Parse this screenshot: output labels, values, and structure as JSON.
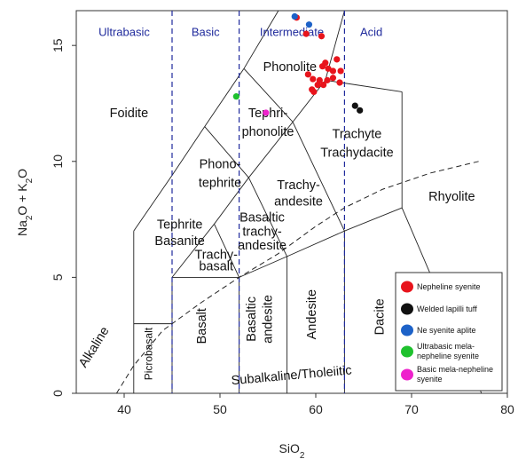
{
  "chart_data": {
    "type": "scatter",
    "title": "",
    "xlabel_main": "SiO",
    "xlabel_sub": "2",
    "ylabel_parts": [
      "Na",
      "2",
      "O + K",
      "2",
      "O"
    ],
    "xlim": [
      35,
      80
    ],
    "ylim": [
      0,
      16.5
    ],
    "xticks": [
      40,
      50,
      60,
      70,
      80
    ],
    "yticks": [
      0,
      5,
      10,
      15
    ],
    "classes": [
      {
        "name": "Ultrabasic",
        "x": 40,
        "y": 15.4
      },
      {
        "name": "Basic",
        "x": 48.5,
        "y": 15.4
      },
      {
        "name": "Intermediate",
        "x": 57.5,
        "y": 15.4
      },
      {
        "name": "Acid",
        "x": 65.8,
        "y": 15.4
      }
    ],
    "fields": [
      {
        "name": "Phonolite",
        "x": 57.3,
        "y": 13.9
      },
      {
        "name": "Foidite",
        "x": 40.5,
        "y": 11.9
      },
      {
        "name": "Tephri-",
        "x": 55.0,
        "y": 11.9
      },
      {
        "name": "phonolite",
        "x": 55.0,
        "y": 11.1
      },
      {
        "name": "Trachyte",
        "x": 64.3,
        "y": 11.0
      },
      {
        "name": "Trachydacite",
        "x": 64.3,
        "y": 10.2
      },
      {
        "name": "Phono-",
        "x": 50.0,
        "y": 9.7
      },
      {
        "name": "tephrite",
        "x": 50.0,
        "y": 8.9
      },
      {
        "name": "Trachy-",
        "x": 58.2,
        "y": 8.8
      },
      {
        "name": "andesite",
        "x": 58.2,
        "y": 8.1
      },
      {
        "name": "Rhyolite",
        "x": 74.2,
        "y": 8.3
      },
      {
        "name": "Tephrite",
        "x": 45.8,
        "y": 7.1
      },
      {
        "name": "Basanite",
        "x": 45.8,
        "y": 6.4
      },
      {
        "name": "Basaltic",
        "x": 54.4,
        "y": 7.4
      },
      {
        "name": "trachy-",
        "x": 54.4,
        "y": 6.8
      },
      {
        "name": "andesite",
        "x": 54.4,
        "y": 6.2
      },
      {
        "name": "Trachy-",
        "x": 49.6,
        "y": 5.8
      },
      {
        "name": "basalt",
        "x": 49.6,
        "y": 5.3
      }
    ],
    "vertical_labels": [
      {
        "name": "Picrobasalt",
        "x": 42.9,
        "y": 1.7
      },
      {
        "name": "Basalt",
        "x": 48.5,
        "y": 2.9
      },
      {
        "name": "Basaltic",
        "x": 53.7,
        "y": 3.2
      },
      {
        "name": "andesite",
        "x": 55.4,
        "y": 3.2
      },
      {
        "name": "Andesite",
        "x": 60.0,
        "y": 3.4
      },
      {
        "name": "Dacite",
        "x": 67.1,
        "y": 3.3
      },
      {
        "name": "Alkaline",
        "x": 37.2,
        "y": 1.9
      }
    ],
    "subalkaline_label": {
      "name": "Subalkaline/Tholeiitic",
      "x": 57.5,
      "y": 0.6
    },
    "series": [
      {
        "name": "Nepheline syenite",
        "color": "#e8141c",
        "points": [
          [
            58.0,
            16.2
          ],
          [
            59.0,
            15.5
          ],
          [
            60.6,
            15.4
          ],
          [
            61.0,
            14.25
          ],
          [
            60.7,
            14.1
          ],
          [
            61.3,
            14.0
          ],
          [
            61.8,
            13.9
          ],
          [
            62.6,
            13.9
          ],
          [
            62.2,
            14.4
          ],
          [
            61.8,
            13.6
          ],
          [
            62.5,
            13.4
          ],
          [
            61.2,
            13.5
          ],
          [
            59.2,
            13.75
          ],
          [
            59.7,
            13.55
          ],
          [
            60.2,
            13.3
          ],
          [
            60.4,
            13.5
          ],
          [
            60.8,
            13.3
          ],
          [
            59.6,
            13.1
          ],
          [
            59.8,
            13.0
          ]
        ]
      },
      {
        "name": "Welded lapilli tuff",
        "color": "#111111",
        "points": [
          [
            64.1,
            12.4
          ],
          [
            64.6,
            12.2
          ]
        ]
      },
      {
        "name": "Ne syenite aplite",
        "color": "#1d62c8",
        "points": [
          [
            57.8,
            16.25
          ],
          [
            59.3,
            15.9
          ]
        ]
      },
      {
        "name": "Ultrabasic mela-nepheline syenite",
        "color": "#1fc12e",
        "points": [
          [
            51.7,
            12.8
          ]
        ]
      },
      {
        "name": "Basic mela-nepheline syenite",
        "color": "#ee22cc",
        "points": [
          [
            54.8,
            12.1
          ]
        ]
      }
    ],
    "legend": [
      {
        "lines": [
          "Nepheline syenite"
        ],
        "color": "#e8141c"
      },
      {
        "lines": [
          "Welded lapilli tuff"
        ],
        "color": "#111111"
      },
      {
        "lines": [
          "Ne syenite aplite"
        ],
        "color": "#1d62c8"
      },
      {
        "lines": [
          "Ultrabasic mela-",
          "nepheline syenite"
        ],
        "color": "#1fc12e"
      },
      {
        "lines": [
          "Basic mela-nepheline",
          "syenite"
        ],
        "color": "#ee22cc"
      }
    ],
    "legend_position": "bottom-right",
    "grid": false
  }
}
